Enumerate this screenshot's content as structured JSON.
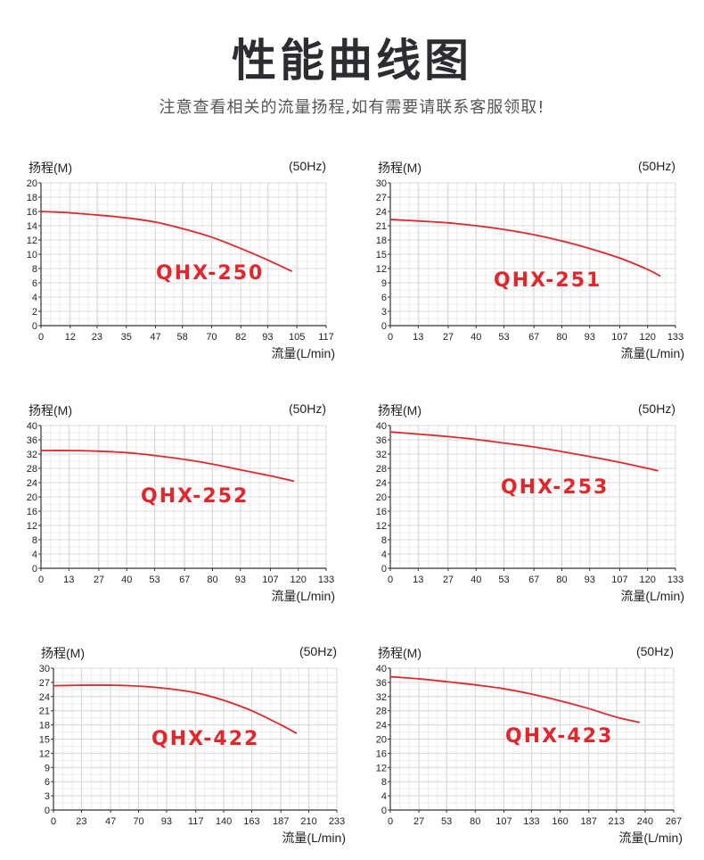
{
  "header": {
    "title": "性能曲线图",
    "subtitle": "注意查看相关的流量扬程,如有需要请联系客服领取!"
  },
  "chart_data": [
    {
      "type": "line",
      "model": "QHX-250",
      "ylabel": "扬程(M)",
      "xlabel": "流量(L/min)",
      "frequency": "(50Hz)",
      "x_ticks": [
        0,
        12,
        23,
        35,
        47,
        58,
        70,
        82,
        93,
        105,
        117
      ],
      "y_ticks": [
        0,
        2,
        4,
        6,
        8,
        10,
        12,
        14,
        16,
        18,
        20
      ],
      "xlim": [
        0,
        117
      ],
      "ylim": [
        0,
        20
      ],
      "grid": true,
      "series": [
        {
          "color": "#e3262c",
          "x": [
            0,
            12,
            23,
            35,
            47,
            58,
            70,
            82,
            93,
            103
          ],
          "y": [
            16,
            15.8,
            15.5,
            15.1,
            14.5,
            13.6,
            12.4,
            10.8,
            9.2,
            7.6
          ]
        }
      ]
    },
    {
      "type": "line",
      "model": "QHX-251",
      "ylabel": "扬程(M)",
      "xlabel": "流量(L/min)",
      "frequency": "(50Hz)",
      "x_ticks": [
        0,
        13,
        27,
        40,
        53,
        67,
        80,
        93,
        107,
        120,
        133
      ],
      "y_ticks": [
        0,
        3,
        6,
        9,
        12,
        15,
        18,
        21,
        24,
        27,
        30
      ],
      "xlim": [
        0,
        133
      ],
      "ylim": [
        0,
        30
      ],
      "grid": true,
      "series": [
        {
          "color": "#e3262c",
          "x": [
            0,
            13,
            27,
            40,
            53,
            67,
            80,
            93,
            107,
            120,
            126
          ],
          "y": [
            22.3,
            22,
            21.6,
            21,
            20.2,
            19.1,
            17.8,
            16.2,
            14.2,
            11.8,
            10.4
          ]
        }
      ]
    },
    {
      "type": "line",
      "model": "QHX-252",
      "ylabel": "扬程(M)",
      "xlabel": "流量(L/min)",
      "frequency": "(50Hz)",
      "x_ticks": [
        0,
        13,
        27,
        40,
        53,
        67,
        80,
        93,
        107,
        120,
        133
      ],
      "y_ticks": [
        0,
        4,
        8,
        12,
        16,
        20,
        24,
        28,
        32,
        36,
        40
      ],
      "xlim": [
        0,
        133
      ],
      "ylim": [
        0,
        40
      ],
      "grid": true,
      "series": [
        {
          "color": "#e3262c",
          "x": [
            0,
            13,
            27,
            40,
            53,
            67,
            80,
            93,
            107,
            118
          ],
          "y": [
            33,
            33,
            32.8,
            32.4,
            31.6,
            30.5,
            29.2,
            27.6,
            25.9,
            24.4
          ]
        }
      ]
    },
    {
      "type": "line",
      "model": "QHX-253",
      "ylabel": "扬程(M)",
      "xlabel": "流量(L/min)",
      "frequency": "(50Hz)",
      "x_ticks": [
        0,
        13,
        27,
        40,
        53,
        67,
        80,
        93,
        107,
        120,
        133
      ],
      "y_ticks": [
        0,
        4,
        8,
        12,
        16,
        20,
        24,
        28,
        32,
        36,
        40
      ],
      "xlim": [
        0,
        133
      ],
      "ylim": [
        0,
        40
      ],
      "grid": true,
      "series": [
        {
          "color": "#e3262c",
          "x": [
            0,
            13,
            27,
            40,
            53,
            67,
            80,
            93,
            107,
            120,
            125
          ],
          "y": [
            38.2,
            37.6,
            36.9,
            36.1,
            35.1,
            34,
            32.7,
            31.3,
            29.7,
            28,
            27.3
          ]
        }
      ]
    },
    {
      "type": "line",
      "model": "QHX-422",
      "ylabel": "扬程(M)",
      "xlabel": "流量(L/min)",
      "frequency": "(50Hz)",
      "x_ticks": [
        0,
        23,
        47,
        70,
        93,
        117,
        140,
        163,
        187,
        210,
        233
      ],
      "y_ticks": [
        0,
        3,
        6,
        9,
        12,
        15,
        18,
        21,
        24,
        27,
        30
      ],
      "xlim": [
        0,
        233
      ],
      "ylim": [
        0,
        30
      ],
      "grid": true,
      "series": [
        {
          "color": "#e3262c",
          "x": [
            0,
            23,
            47,
            70,
            93,
            117,
            140,
            163,
            187,
            200
          ],
          "y": [
            26.3,
            26.4,
            26.4,
            26.2,
            25.7,
            24.8,
            23.2,
            21,
            18,
            16.2
          ]
        }
      ]
    },
    {
      "type": "line",
      "model": "QHX-423",
      "ylabel": "扬程(M)",
      "xlabel": "流量(L/min)",
      "frequency": "(50Hz)",
      "x_ticks": [
        0,
        27,
        53,
        80,
        107,
        133,
        160,
        187,
        213,
        240,
        267
      ],
      "y_ticks": [
        0,
        4,
        8,
        12,
        16,
        20,
        24,
        28,
        32,
        36,
        40
      ],
      "xlim": [
        0,
        267
      ],
      "ylim": [
        0,
        40
      ],
      "grid": true,
      "series": [
        {
          "color": "#e3262c",
          "x": [
            0,
            27,
            53,
            80,
            107,
            133,
            160,
            187,
            213,
            235
          ],
          "y": [
            37.6,
            37,
            36.2,
            35.3,
            34.2,
            32.7,
            30.8,
            28.6,
            26.2,
            24.7
          ]
        }
      ]
    }
  ]
}
